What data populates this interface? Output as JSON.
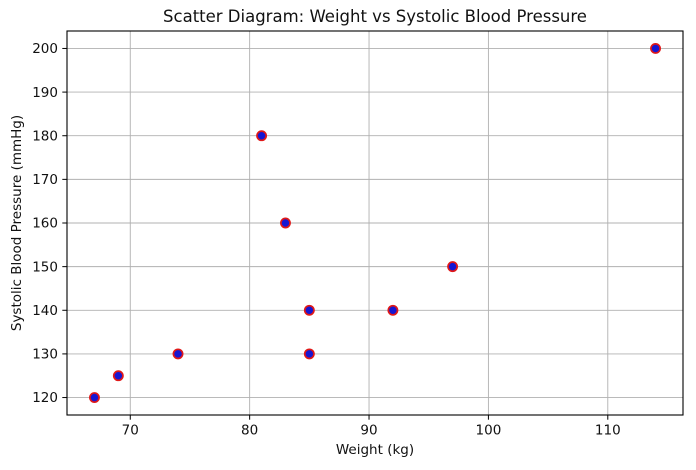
{
  "chart_data": {
    "type": "scatter",
    "title": "Scatter Diagram: Weight vs Systolic Blood Pressure",
    "xlabel": "Weight (kg)",
    "ylabel": "Systolic Blood Pressure (mmHg)",
    "points": [
      {
        "x": 67,
        "y": 120
      },
      {
        "x": 69,
        "y": 125
      },
      {
        "x": 74,
        "y": 130
      },
      {
        "x": 81,
        "y": 180
      },
      {
        "x": 83,
        "y": 160
      },
      {
        "x": 85,
        "y": 130
      },
      {
        "x": 85,
        "y": 140
      },
      {
        "x": 92,
        "y": 140
      },
      {
        "x": 97,
        "y": 150
      },
      {
        "x": 114,
        "y": 200
      }
    ],
    "xticks": [
      70,
      80,
      90,
      100,
      110
    ],
    "yticks": [
      120,
      130,
      140,
      150,
      160,
      170,
      180,
      190,
      200
    ],
    "xlim": [
      64.7,
      116.3
    ],
    "ylim": [
      116,
      204
    ],
    "grid": true,
    "legend": null,
    "colors": {
      "marker_fill": "#1616d2",
      "marker_edge": "#e01818",
      "grid": "#b0b0b0",
      "spine": "#000000",
      "background": "#ffffff",
      "text": "#111111"
    }
  }
}
